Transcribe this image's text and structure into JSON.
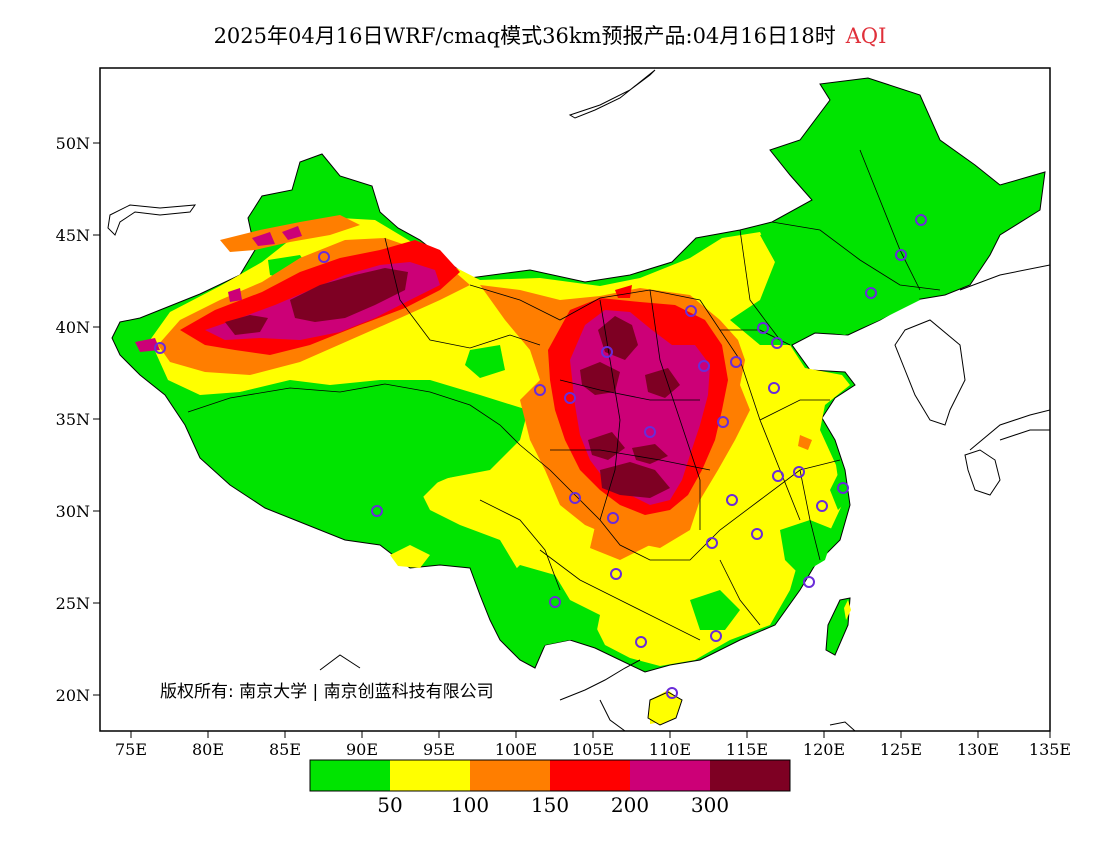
{
  "title": {
    "main": "2025年04月16日WRF/cmaq模式36km预报产品:04月16日18时",
    "variable": "AQI"
  },
  "axes": {
    "x_ticks": [
      "75E",
      "80E",
      "85E",
      "90E",
      "95E",
      "100E",
      "105E",
      "110E",
      "115E",
      "120E",
      "125E",
      "130E",
      "135E"
    ],
    "y_ticks": [
      "50N",
      "45N",
      "40N",
      "35N",
      "30N",
      "25N",
      "20N"
    ]
  },
  "copyright": "版权所有: 南京大学 | 南京创蓝科技有限公司",
  "colorbar": {
    "labels": [
      "50",
      "100",
      "150",
      "200",
      "300"
    ],
    "colors": [
      "#00e400",
      "#ffff00",
      "#ff7e00",
      "#ff0000",
      "#cc0077",
      "#7e0023"
    ]
  },
  "colors": {
    "good": "#00e400",
    "moderate": "#ffff00",
    "unhealthy_sensitive": "#ff7e00",
    "unhealthy": "#ff0000",
    "very_unhealthy": "#cc0077",
    "hazardous": "#7e0023",
    "station_marker": "#6a2cd8"
  }
}
